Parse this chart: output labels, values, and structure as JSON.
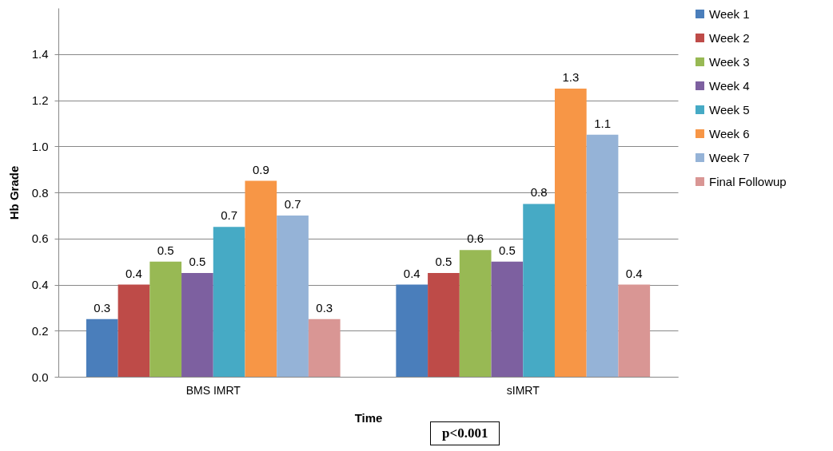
{
  "chart_data": {
    "type": "bar",
    "xlabel": "Time",
    "ylabel": "Hb Grade",
    "categories": [
      "BMS IMRT",
      "sIMRT"
    ],
    "series": [
      {
        "name": "Week 1",
        "color": "#4a7ebb",
        "values": [
          0.25,
          0.4
        ],
        "value_labels": [
          "0.3",
          "0.4"
        ]
      },
      {
        "name": "Week 2",
        "color": "#be4b48",
        "values": [
          0.4,
          0.45
        ],
        "value_labels": [
          "0.4",
          "0.5"
        ]
      },
      {
        "name": "Week 3",
        "color": "#98b954",
        "values": [
          0.5,
          0.55
        ],
        "value_labels": [
          "0.5",
          "0.6"
        ]
      },
      {
        "name": "Week 4",
        "color": "#7d60a0",
        "values": [
          0.45,
          0.5
        ],
        "value_labels": [
          "0.5",
          "0.5"
        ]
      },
      {
        "name": "Week 5",
        "color": "#46aac5",
        "values": [
          0.65,
          0.75
        ],
        "value_labels": [
          "0.7",
          "0.8"
        ]
      },
      {
        "name": "Week 6",
        "color": "#f79646",
        "values": [
          0.85,
          1.25
        ],
        "value_labels": [
          "0.9",
          "1.3"
        ]
      },
      {
        "name": "Week 7",
        "color": "#95b3d7",
        "values": [
          0.7,
          1.05
        ],
        "value_labels": [
          "0.7",
          "1.1"
        ]
      },
      {
        "name": "Final Followup",
        "color": "#d99694",
        "values": [
          0.25,
          0.4
        ],
        "value_labels": [
          "0.3",
          "0.4"
        ]
      }
    ],
    "ylim": [
      0,
      1.6
    ],
    "yticks": [
      {
        "value": 0,
        "label": "0.0"
      },
      0.2,
      0.4,
      0.6,
      0.8,
      {
        "value": 1,
        "label": "1.0"
      },
      1.2,
      1.4
    ],
    "grid": "y",
    "legend": "right",
    "annotations": [
      "p<0.001"
    ]
  }
}
